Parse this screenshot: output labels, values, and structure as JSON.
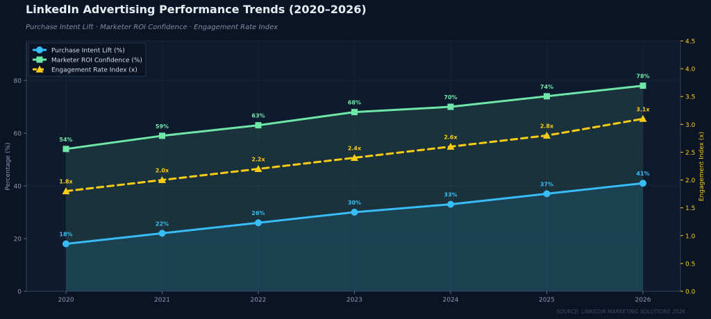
{
  "header": {
    "title": "LinkedIn Advertising Performance Trends (2020–2026)",
    "subtitle": "Purchase Intent Lift · Marketer ROI Confidence · Engagement Rate Index"
  },
  "footer": {
    "source": "SOURCE: LINKEDIN MARKETING SOLUTIONS 2026"
  },
  "chart_data": {
    "type": "line",
    "x": [
      2020,
      2021,
      2022,
      2023,
      2024,
      2025,
      2026
    ],
    "ylabel": "Percentage (%)",
    "ylabel_right": "Engagement Index (x)",
    "ylim": [
      0,
      95
    ],
    "ylim_right": [
      0,
      4.5
    ],
    "yticks": [
      0,
      20,
      40,
      60,
      80
    ],
    "yticks_right": [
      "0.0",
      "0.5",
      "1.0",
      "1.5",
      "2.0",
      "2.5",
      "3.0",
      "3.5",
      "4.0",
      "4.5"
    ],
    "legend_position": "top-left",
    "grid": true,
    "series": [
      {
        "name": "Purchase Intent Lift (%)",
        "axis": "left",
        "marker": "circle",
        "dashed": false,
        "fill": true,
        "color": "#38bdf8",
        "values": [
          18,
          22,
          26,
          30,
          33,
          37,
          41
        ],
        "labels": [
          "18%",
          "22%",
          "26%",
          "30%",
          "33%",
          "37%",
          "41%"
        ]
      },
      {
        "name": "Marketer ROI Confidence (%)",
        "axis": "left",
        "marker": "square",
        "dashed": false,
        "fill": true,
        "color": "#6ee7a8",
        "values": [
          54,
          59,
          63,
          68,
          70,
          74,
          78
        ],
        "labels": [
          "54%",
          "59%",
          "63%",
          "68%",
          "70%",
          "74%",
          "78%"
        ]
      },
      {
        "name": "Engagement Rate Index (x)",
        "axis": "right",
        "marker": "triangle",
        "dashed": true,
        "fill": false,
        "color": "#facc15",
        "values": [
          1.8,
          2.0,
          2.2,
          2.4,
          2.6,
          2.8,
          3.1
        ],
        "labels": [
          "1.8x",
          "2.0x",
          "2.2x",
          "2.4x",
          "2.6x",
          "2.8x",
          "3.1x"
        ]
      }
    ]
  }
}
